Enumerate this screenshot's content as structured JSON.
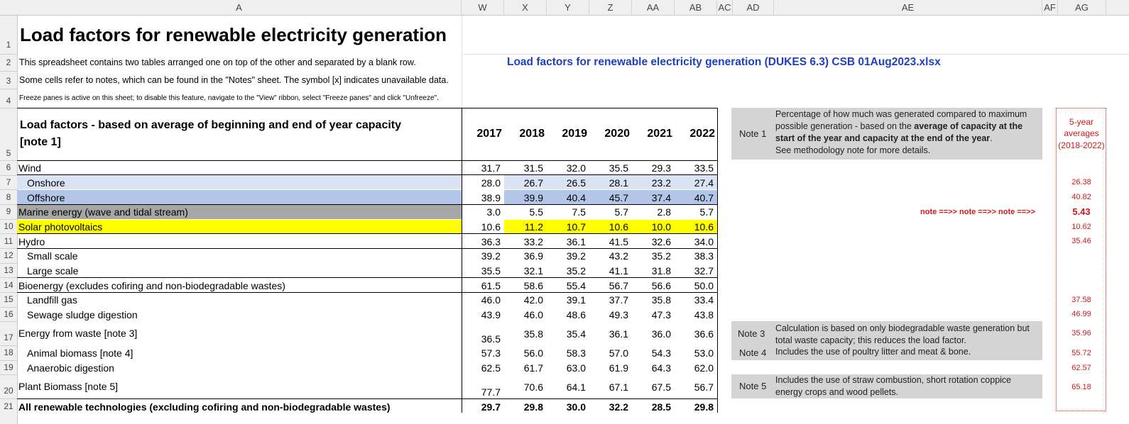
{
  "columns": [
    "A",
    "W",
    "X",
    "Y",
    "Z",
    "AA",
    "AB",
    "AC",
    "AD",
    "AE",
    "AF",
    "AG"
  ],
  "row_numbers": [
    "1",
    "2",
    "3",
    "4",
    "5",
    "6",
    "7",
    "8",
    "9",
    "10",
    "11",
    "12",
    "13",
    "14",
    "15",
    "16",
    "17",
    "18",
    "19",
    "20",
    "21"
  ],
  "title": "Load factors for renewable electricity generation",
  "file_link": "Load factors for renewable electricity generation (DUKES 6.3) CSB 01Aug2023.xlsx",
  "intro": {
    "line1": "This spreadsheet contains two tables arranged one on top of the other and separated by a blank row.",
    "line2": "Some cells refer to notes, which can be found in the \"Notes\" sheet. The symbol [x] indicates unavailable data.",
    "line3": "Freeze panes is active on this sheet; to disable this feature, navigate to the \"View\" ribbon, select \"Freeze panes\" and click \"Unfreeze\"."
  },
  "table": {
    "header_line1": "Load factors - based on average of beginning and end of year capacity",
    "header_line2": "[note 1]",
    "years": [
      "2017",
      "2018",
      "2019",
      "2020",
      "2021",
      "2022"
    ],
    "rows": [
      {
        "label": "Wind",
        "values": [
          "31.7",
          "31.5",
          "32.0",
          "35.5",
          "29.3",
          "33.5"
        ]
      },
      {
        "label": "Onshore",
        "values": [
          "28.0",
          "26.7",
          "26.5",
          "28.1",
          "23.2",
          "27.4"
        ]
      },
      {
        "label": "Offshore",
        "values": [
          "38.9",
          "39.9",
          "40.4",
          "45.7",
          "37.4",
          "40.7"
        ]
      },
      {
        "label": "Marine energy (wave and tidal stream)",
        "values": [
          "3.0",
          "5.5",
          "7.5",
          "5.7",
          "2.8",
          "5.7"
        ]
      },
      {
        "label": "Solar photovoltaics",
        "values": [
          "10.6",
          "11.2",
          "10.7",
          "10.6",
          "10.0",
          "10.6"
        ]
      },
      {
        "label": "Hydro",
        "values": [
          "36.3",
          "33.2",
          "36.1",
          "41.5",
          "32.6",
          "34.0"
        ]
      },
      {
        "label": "Small scale",
        "values": [
          "39.2",
          "36.9",
          "39.2",
          "43.2",
          "35.2",
          "38.3"
        ]
      },
      {
        "label": "Large scale",
        "values": [
          "35.5",
          "32.1",
          "35.2",
          "41.1",
          "31.8",
          "32.7"
        ]
      },
      {
        "label": "Bioenergy (excludes cofiring and non-biodegradable wastes)",
        "values": [
          "61.5",
          "58.6",
          "55.4",
          "56.7",
          "56.6",
          "50.0"
        ]
      },
      {
        "label": "Landfill gas",
        "values": [
          "46.0",
          "42.0",
          "39.1",
          "37.7",
          "35.8",
          "33.4"
        ]
      },
      {
        "label": "Sewage sludge digestion",
        "values": [
          "43.9",
          "46.0",
          "48.6",
          "49.3",
          "47.3",
          "43.8"
        ]
      },
      {
        "label": "Energy from waste [note 3]",
        "values": [
          "36.5",
          "35.8",
          "35.4",
          "36.1",
          "36.0",
          "36.6"
        ]
      },
      {
        "label": "Animal biomass [note 4]",
        "values": [
          "57.3",
          "56.0",
          "58.3",
          "57.0",
          "54.3",
          "53.0"
        ]
      },
      {
        "label": "Anaerobic digestion",
        "values": [
          "62.5",
          "61.7",
          "63.0",
          "61.9",
          "64.3",
          "62.0"
        ]
      },
      {
        "label": "Plant Biomass [note 5]",
        "values": [
          "77.7",
          "70.6",
          "64.1",
          "67.1",
          "67.5",
          "56.7"
        ]
      },
      {
        "label": "All renewable technologies (excluding cofiring and non-biodegradable wastes)",
        "values": [
          "29.7",
          "29.8",
          "30.0",
          "32.2",
          "28.5",
          "29.8"
        ]
      }
    ]
  },
  "notes": {
    "note1": {
      "key": "Note 1",
      "line1": "Percentage of how much was generated compared to maximum",
      "line2a": "possible generation - based on the ",
      "line2b": "average of capacity at the",
      "line3a": "start of the year and capacity at the end of the year",
      "line3b": ".",
      "line4": "See methodology note for more details."
    },
    "note3": {
      "key": "Note 3",
      "line1": "Calculation is based on only biodegradable waste generation but",
      "line2": "total waste capacity;  this reduces the load factor."
    },
    "note4": {
      "key": "Note 4",
      "line1": "Includes the use of poultry litter and meat & bone."
    },
    "note5": {
      "key": "Note 5",
      "line1": "Includes the use of straw combustion, short rotation coppice",
      "line2": "energy crops and wood pellets."
    },
    "arrows": "note ==>>  note ==>>  note ==>>"
  },
  "averages": {
    "header1": "5-year",
    "header2": "averages",
    "header3": "(2018-2022)",
    "values": {
      "onshore": "26.38",
      "offshore": "40.82",
      "marine": "5.43",
      "solar": "10.62",
      "hydro": "35.46",
      "landfill": "37.58",
      "sewage": "46.99",
      "efw": "35.96",
      "animal": "55.72",
      "anaerobic": "62.57",
      "plant": "65.18"
    }
  },
  "colors": {
    "onshore_fill": "#dae3f3",
    "offshore_fill": "#b4c6e7",
    "marine_fill": "#a6a6a6",
    "solar_fill": "#ffff00",
    "link": "#1f3fbf",
    "avg_red": "#d01818",
    "note_fill": "#d4d4d4"
  }
}
